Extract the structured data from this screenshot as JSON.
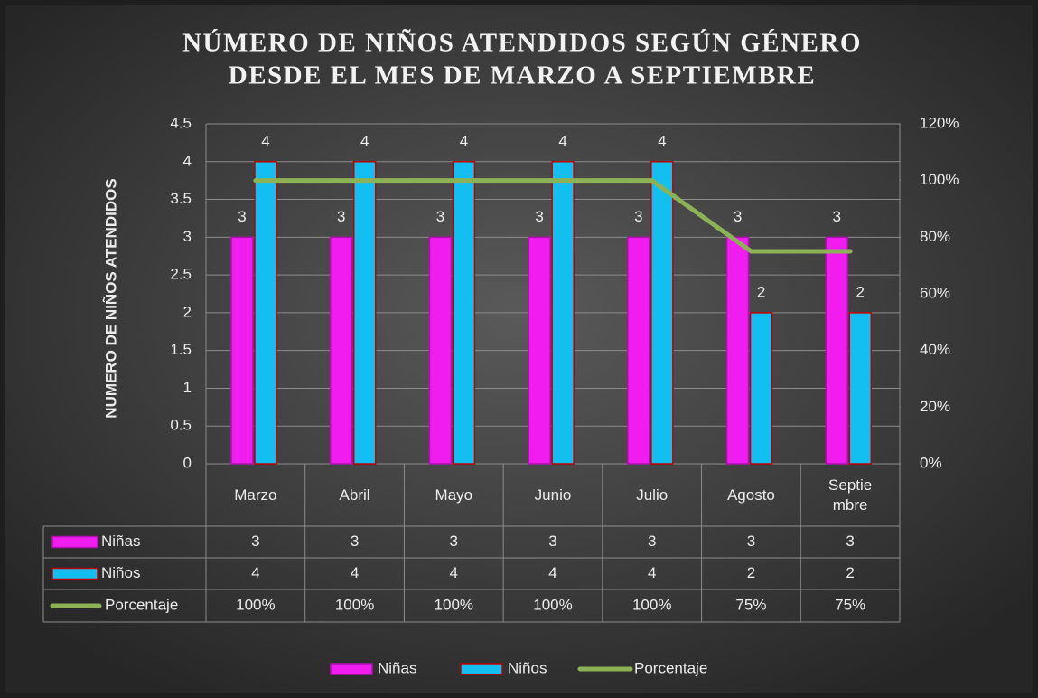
{
  "chart_data": {
    "type": "bar",
    "title": [
      "NÚMERO DE NIÑOS ATENDIDOS SEGÚN GÉNERO",
      "DESDE EL MES DE MARZO A SEPTIEMBRE"
    ],
    "y_axis_label": "NUMERO DE NIÑOS ATENDIDOS",
    "categories": [
      "Marzo",
      "Abril",
      "Mayo",
      "Junio",
      "Julio",
      "Agosto",
      "Septiembre"
    ],
    "series": [
      {
        "name": "Niñas",
        "color": "#f01cf0",
        "values": [
          3,
          3,
          3,
          3,
          3,
          3,
          3
        ]
      },
      {
        "name": "Niños",
        "color": "#12bff0",
        "values": [
          4,
          4,
          4,
          4,
          4,
          2,
          2
        ]
      },
      {
        "name": "Porcentaje",
        "color": "#8db255",
        "type": "line",
        "axis": "y2",
        "values": [
          100,
          100,
          100,
          100,
          100,
          75,
          75
        ],
        "value_labels": [
          "100%",
          "100%",
          "100%",
          "100%",
          "100%",
          "75%",
          "75%"
        ]
      }
    ],
    "ylim": [
      0,
      4.5
    ],
    "yticks": [
      0,
      0.5,
      1,
      1.5,
      2,
      2.5,
      3,
      3.5,
      4,
      4.5
    ],
    "y2lim": [
      0,
      120
    ],
    "y2ticks": [
      {
        "value": 0,
        "label": "0%"
      },
      {
        "value": 20,
        "label": "20%"
      },
      {
        "value": 40,
        "label": "40%"
      },
      {
        "value": 60,
        "label": "60%"
      },
      {
        "value": 80,
        "label": "80%"
      },
      {
        "value": 100,
        "label": "100%"
      },
      {
        "value": 120,
        "label": "120%"
      }
    ],
    "grid": true,
    "legend": "bottom",
    "data_table": true
  }
}
